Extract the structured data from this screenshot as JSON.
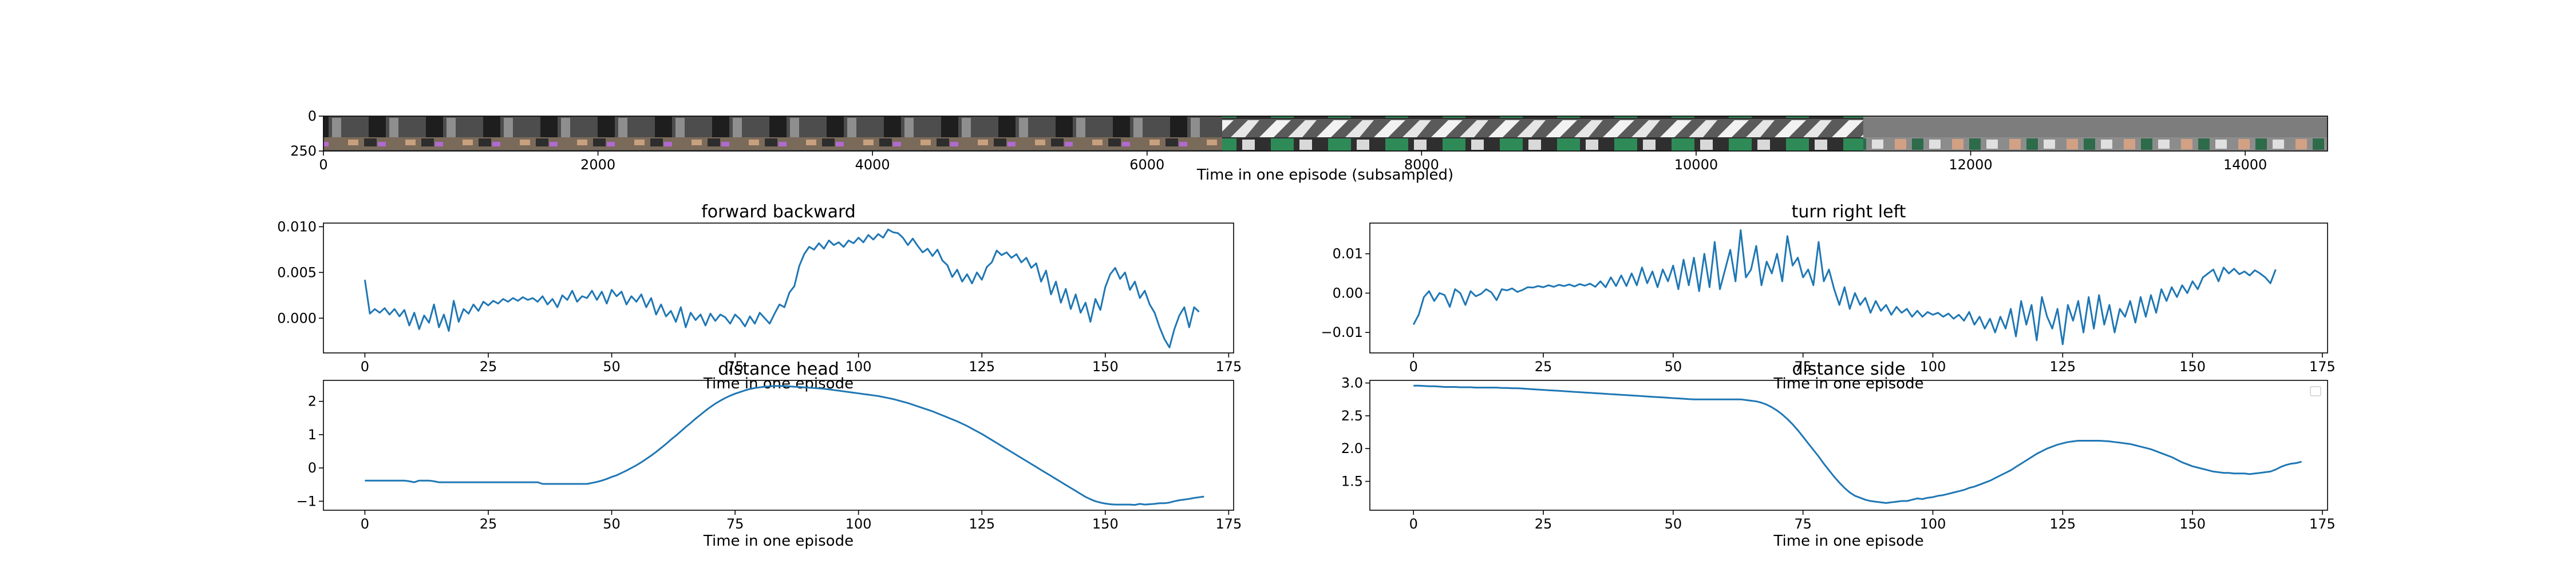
{
  "chart_data": [
    {
      "type": "image",
      "xlabel": "Time in one episode (subsampled)",
      "xticks": [
        0,
        2000,
        4000,
        6000,
        8000,
        10000,
        12000,
        14000
      ],
      "xlim": [
        0,
        14600
      ],
      "yticks": [
        0,
        250
      ],
      "ylim": [
        0,
        250
      ]
    },
    {
      "type": "line",
      "title": "forward backward",
      "xlabel": "Time in one episode",
      "xticks": [
        0,
        25,
        50,
        75,
        100,
        125,
        150,
        175
      ],
      "xlim": [
        -8.4,
        176
      ],
      "yticks": [
        "0.000",
        "0.005",
        "0.010"
      ],
      "ylim": [
        -0.0038,
        0.0104
      ],
      "series": [
        {
          "color": "#1f77b4",
          "x_start": 0,
          "x_step": 1,
          "values": [
            0.0042,
            0.0005,
            0.001,
            0.0006,
            0.0011,
            0.0004,
            0.001,
            0.0002,
            0.0009,
            -0.0008,
            0.0006,
            -0.0012,
            0.0003,
            -0.0005,
            0.0015,
            -0.001,
            0.0004,
            -0.0014,
            0.0019,
            -0.0004,
            0.001,
            0.0005,
            0.0015,
            0.0008,
            0.0018,
            0.0014,
            0.0019,
            0.0016,
            0.0021,
            0.0018,
            0.0022,
            0.0019,
            0.0023,
            0.002,
            0.0022,
            0.0018,
            0.0024,
            0.0015,
            0.0021,
            0.0012,
            0.0025,
            0.002,
            0.003,
            0.0018,
            0.0024,
            0.0022,
            0.003,
            0.002,
            0.0029,
            0.0016,
            0.0031,
            0.0024,
            0.0029,
            0.0015,
            0.0024,
            0.0018,
            0.0026,
            0.0012,
            0.0022,
            0.0004,
            0.0015,
            0.0002,
            0.0008,
            -0.0004,
            0.0012,
            -0.001,
            0.0006,
            -0.0002,
            0.0004,
            -0.0008,
            0.0005,
            -0.0003,
            0.0004,
            0.0001,
            -0.0006,
            0.0004,
            -0.0001,
            -0.0009,
            0.0002,
            -0.0006,
            0.0006,
            0.0,
            -0.0006,
            0.0005,
            0.0015,
            0.0012,
            0.0028,
            0.0035,
            0.0057,
            0.007,
            0.0078,
            0.0075,
            0.0082,
            0.0076,
            0.0085,
            0.008,
            0.0083,
            0.0078,
            0.0085,
            0.0082,
            0.0088,
            0.0083,
            0.0091,
            0.0086,
            0.0092,
            0.0088,
            0.0097,
            0.0094,
            0.0093,
            0.0088,
            0.008,
            0.0087,
            0.0079,
            0.0072,
            0.0076,
            0.0068,
            0.0075,
            0.0063,
            0.0058,
            0.0045,
            0.0053,
            0.004,
            0.0048,
            0.0038,
            0.005,
            0.0042,
            0.0056,
            0.0061,
            0.0074,
            0.0069,
            0.0072,
            0.0066,
            0.007,
            0.0061,
            0.0066,
            0.0055,
            0.006,
            0.004,
            0.0052,
            0.0026,
            0.004,
            0.0017,
            0.0032,
            0.001,
            0.0026,
            0.0006,
            0.0017,
            -0.0004,
            0.0021,
            0.0009,
            0.0034,
            0.0048,
            0.0055,
            0.0043,
            0.005,
            0.0031,
            0.004,
            0.0022,
            0.003,
            0.0015,
            0.0006,
            -0.001,
            -0.0023,
            -0.0032,
            -0.0012,
            0.0003,
            0.0012,
            -0.001,
            0.0012,
            0.0007
          ]
        }
      ]
    },
    {
      "type": "line",
      "title": "turn right left",
      "xlabel": "Time in one episode",
      "xticks": [
        0,
        25,
        50,
        75,
        100,
        125,
        150,
        175
      ],
      "xlim": [
        -8.4,
        176
      ],
      "yticks": [
        "−0.01",
        "0.00",
        "0.01"
      ],
      "ylim": [
        -0.0152,
        0.0178
      ],
      "series": [
        {
          "color": "#1f77b4",
          "x_start": 0,
          "x_step": 1,
          "values": [
            -0.008,
            -0.0055,
            -0.001,
            0.0005,
            -0.002,
            0.0,
            -0.0005,
            -0.0035,
            0.001,
            0.0,
            -0.003,
            0.0005,
            -0.0008,
            -0.0002,
            0.001,
            0.0002,
            -0.0018,
            0.001,
            0.0007,
            0.0012,
            0.0003,
            0.0008,
            0.0015,
            0.0014,
            0.0018,
            0.0015,
            0.002,
            0.0016,
            0.0021,
            0.0018,
            0.0022,
            0.0017,
            0.0023,
            0.0019,
            0.0024,
            0.0016,
            0.003,
            0.0015,
            0.004,
            0.0018,
            0.0045,
            0.0018,
            0.005,
            0.002,
            0.0065,
            0.0025,
            0.0055,
            0.0015,
            0.006,
            0.003,
            0.007,
            0.001,
            0.0085,
            0.002,
            0.009,
            0.0005,
            0.01,
            0.0015,
            0.013,
            0.001,
            0.006,
            0.011,
            0.003,
            0.016,
            0.004,
            0.006,
            0.012,
            0.002,
            0.008,
            0.005,
            0.01,
            0.003,
            0.0145,
            0.007,
            0.009,
            0.004,
            0.006,
            0.002,
            0.013,
            0.003,
            0.006,
            0.001,
            -0.003,
            0.0015,
            -0.004,
            0.0,
            -0.003,
            -0.0012,
            -0.005,
            -0.002,
            -0.0045,
            -0.003,
            -0.0055,
            -0.0035,
            -0.005,
            -0.004,
            -0.006,
            -0.0045,
            -0.006,
            -0.0048,
            -0.0055,
            -0.005,
            -0.006,
            -0.0052,
            -0.0065,
            -0.0055,
            -0.007,
            -0.0048,
            -0.008,
            -0.006,
            -0.009,
            -0.0065,
            -0.01,
            -0.006,
            -0.009,
            -0.004,
            -0.011,
            -0.002,
            -0.008,
            -0.003,
            -0.012,
            -0.001,
            -0.006,
            -0.009,
            -0.004,
            -0.013,
            -0.003,
            -0.007,
            -0.002,
            -0.01,
            -0.001,
            -0.009,
            -0.0005,
            -0.008,
            -0.003,
            -0.01,
            -0.004,
            -0.006,
            -0.002,
            -0.0075,
            -0.001,
            -0.006,
            -0.0005,
            -0.005,
            0.001,
            -0.002,
            0.0015,
            -0.001,
            0.002,
            0.0,
            0.003,
            0.001,
            0.004,
            0.005,
            0.006,
            0.003,
            0.0065,
            0.005,
            0.0062,
            0.0048,
            0.0055,
            0.0045,
            0.0058,
            0.005,
            0.004,
            0.0025,
            0.006
          ]
        }
      ]
    },
    {
      "type": "line",
      "title": "distance head",
      "xlabel": "Time in one episode",
      "xticks": [
        0,
        25,
        50,
        75,
        100,
        125,
        150,
        175
      ],
      "xlim": [
        -8.4,
        176
      ],
      "yticks": [
        "−1",
        "0",
        "1",
        "2"
      ],
      "ylim": [
        -1.27,
        2.63
      ],
      "series": [
        {
          "color": "#1f77b4",
          "x_start": 0,
          "x_step": 1,
          "values": [
            -0.38,
            -0.38,
            -0.38,
            -0.38,
            -0.38,
            -0.38,
            -0.38,
            -0.38,
            -0.38,
            -0.4,
            -0.43,
            -0.38,
            -0.38,
            -0.38,
            -0.4,
            -0.43,
            -0.43,
            -0.43,
            -0.43,
            -0.43,
            -0.43,
            -0.43,
            -0.43,
            -0.43,
            -0.43,
            -0.43,
            -0.43,
            -0.43,
            -0.43,
            -0.43,
            -0.43,
            -0.43,
            -0.43,
            -0.43,
            -0.43,
            -0.43,
            -0.48,
            -0.48,
            -0.48,
            -0.48,
            -0.48,
            -0.48,
            -0.48,
            -0.48,
            -0.48,
            -0.48,
            -0.45,
            -0.42,
            -0.38,
            -0.33,
            -0.27,
            -0.22,
            -0.15,
            -0.08,
            0.0,
            0.08,
            0.17,
            0.27,
            0.37,
            0.48,
            0.6,
            0.72,
            0.85,
            0.97,
            1.1,
            1.23,
            1.35,
            1.48,
            1.6,
            1.72,
            1.83,
            1.93,
            2.02,
            2.1,
            2.17,
            2.23,
            2.28,
            2.33,
            2.37,
            2.4,
            2.42,
            2.44,
            2.45,
            2.46,
            2.46,
            2.46,
            2.45,
            2.44,
            2.43,
            2.42,
            2.41,
            2.4,
            2.39,
            2.38,
            2.36,
            2.34,
            2.32,
            2.3,
            2.28,
            2.26,
            2.24,
            2.22,
            2.2,
            2.18,
            2.16,
            2.13,
            2.1,
            2.07,
            2.03,
            1.99,
            1.95,
            1.9,
            1.85,
            1.8,
            1.75,
            1.7,
            1.64,
            1.58,
            1.52,
            1.46,
            1.4,
            1.33,
            1.26,
            1.18,
            1.1,
            1.02,
            0.93,
            0.84,
            0.75,
            0.66,
            0.57,
            0.48,
            0.39,
            0.3,
            0.21,
            0.12,
            0.03,
            -0.06,
            -0.15,
            -0.24,
            -0.33,
            -0.42,
            -0.51,
            -0.6,
            -0.69,
            -0.78,
            -0.87,
            -0.94,
            -1.0,
            -1.04,
            -1.07,
            -1.09,
            -1.1,
            -1.1,
            -1.1,
            -1.1,
            -1.11,
            -1.08,
            -1.1,
            -1.09,
            -1.08,
            -1.06,
            -1.06,
            -1.04,
            -1.0,
            -0.97,
            -0.95,
            -0.93,
            -0.9,
            -0.88,
            -0.86
          ]
        }
      ]
    },
    {
      "type": "line",
      "title": "distance side",
      "xlabel": "Time in one episode",
      "xticks": [
        0,
        25,
        50,
        75,
        100,
        125,
        150,
        175
      ],
      "xlim": [
        -8.4,
        176
      ],
      "yticks": [
        "1.5",
        "2.0",
        "2.5",
        "3.0"
      ],
      "ylim": [
        1.06,
        3.04
      ],
      "series": [
        {
          "color": "#1f77b4",
          "x_start": 0,
          "x_step": 1,
          "values": [
            2.96,
            2.96,
            2.955,
            2.95,
            2.95,
            2.945,
            2.94,
            2.94,
            2.94,
            2.935,
            2.935,
            2.935,
            2.93,
            2.93,
            2.93,
            2.93,
            2.93,
            2.925,
            2.925,
            2.92,
            2.92,
            2.915,
            2.91,
            2.905,
            2.9,
            2.895,
            2.89,
            2.885,
            2.88,
            2.875,
            2.87,
            2.865,
            2.86,
            2.855,
            2.85,
            2.845,
            2.84,
            2.835,
            2.83,
            2.825,
            2.82,
            2.815,
            2.81,
            2.805,
            2.8,
            2.795,
            2.79,
            2.785,
            2.78,
            2.775,
            2.77,
            2.765,
            2.76,
            2.755,
            2.75,
            2.75,
            2.75,
            2.75,
            2.75,
            2.75,
            2.75,
            2.75,
            2.75,
            2.75,
            2.74,
            2.73,
            2.72,
            2.7,
            2.67,
            2.63,
            2.58,
            2.52,
            2.45,
            2.37,
            2.28,
            2.18,
            2.08,
            1.98,
            1.88,
            1.77,
            1.67,
            1.57,
            1.48,
            1.4,
            1.33,
            1.28,
            1.25,
            1.22,
            1.2,
            1.19,
            1.18,
            1.17,
            1.18,
            1.19,
            1.2,
            1.2,
            1.22,
            1.24,
            1.23,
            1.25,
            1.26,
            1.28,
            1.29,
            1.31,
            1.33,
            1.35,
            1.37,
            1.4,
            1.42,
            1.45,
            1.48,
            1.51,
            1.55,
            1.59,
            1.63,
            1.67,
            1.72,
            1.77,
            1.82,
            1.87,
            1.92,
            1.96,
            2.0,
            2.03,
            2.06,
            2.08,
            2.1,
            2.11,
            2.12,
            2.12,
            2.12,
            2.12,
            2.12,
            2.115,
            2.11,
            2.1,
            2.09,
            2.08,
            2.07,
            2.05,
            2.03,
            2.01,
            1.99,
            1.96,
            1.93,
            1.9,
            1.87,
            1.83,
            1.79,
            1.76,
            1.73,
            1.71,
            1.69,
            1.67,
            1.65,
            1.64,
            1.63,
            1.63,
            1.62,
            1.62,
            1.62,
            1.61,
            1.62,
            1.63,
            1.64,
            1.65,
            1.68,
            1.72,
            1.75,
            1.77,
            1.78,
            1.8
          ]
        }
      ]
    }
  ]
}
